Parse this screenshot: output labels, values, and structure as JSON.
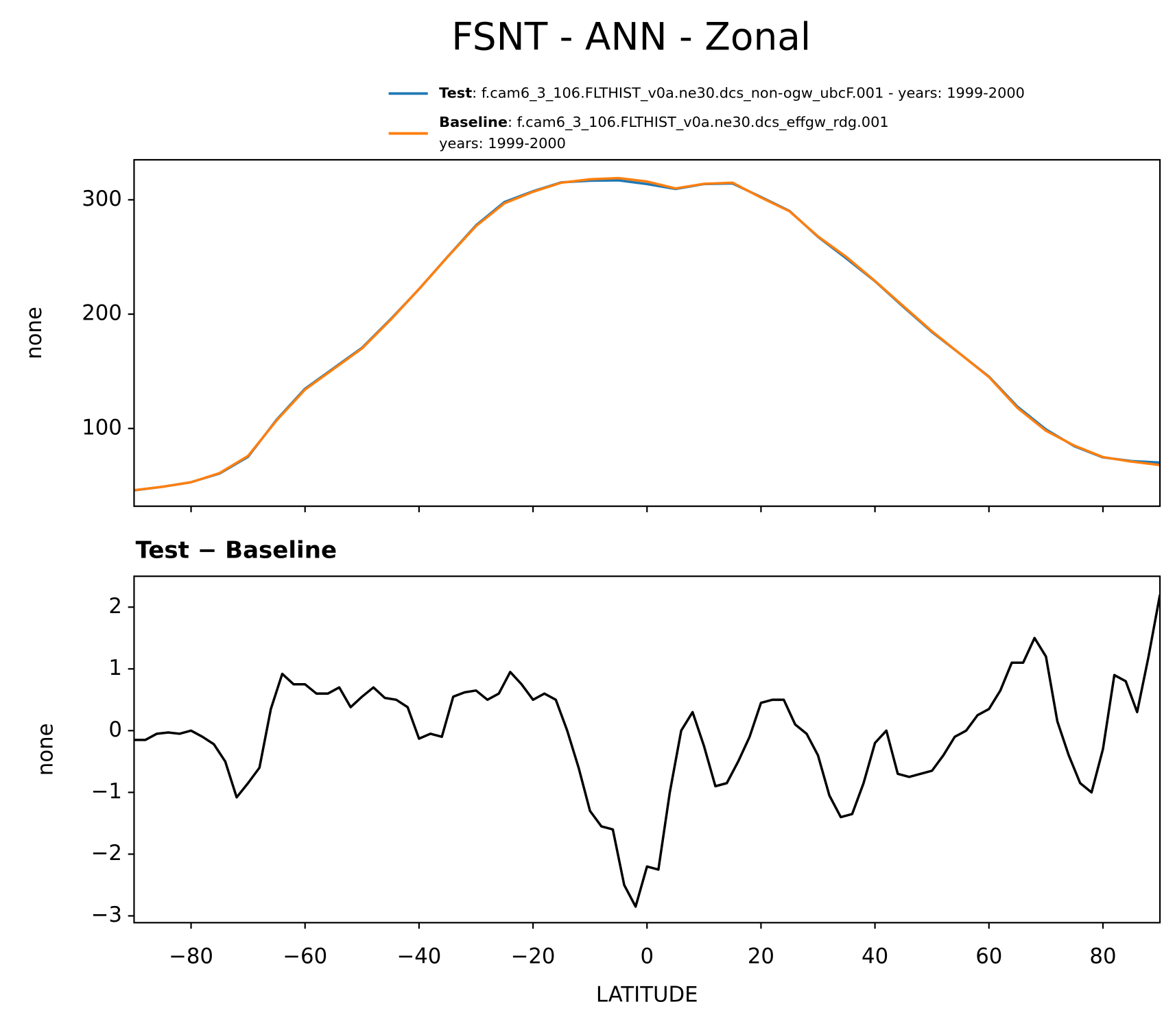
{
  "chart_data": [
    {
      "type": "line",
      "title": "FSNT - ANN - Zonal",
      "ylabel": "none",
      "x": [
        -90,
        -85,
        -80,
        -75,
        -70,
        -65,
        -60,
        -55,
        -50,
        -45,
        -40,
        -35,
        -30,
        -25,
        -20,
        -15,
        -10,
        -5,
        0,
        5,
        10,
        15,
        20,
        25,
        30,
        35,
        40,
        45,
        50,
        55,
        60,
        65,
        70,
        75,
        80,
        85,
        90
      ],
      "series": [
        {
          "name": "Test",
          "description": ": f.cam6_3_106.FLTHIST_v0a.ne30.dcs_non-ogw_ubcF.001 - years: 1999-2000",
          "color": "#1f77b4",
          "values": [
            45.9,
            49,
            53,
            60.6,
            75.2,
            107.6,
            134.8,
            152.7,
            170.6,
            195.5,
            221.9,
            250.2,
            277.7,
            298.1,
            307.5,
            315.3,
            316.7,
            317,
            313.8,
            309.5,
            313.8,
            314.3,
            302.5,
            290.3,
            267.6,
            248.6,
            228.8,
            206.3,
            184.4,
            165,
            145.4,
            119.1,
            99.2,
            84.4,
            74.7,
            71.5,
            70.2
          ]
        },
        {
          "name": "Baseline",
          "description": ": f.cam6_3_106.FLTHIST_v0a.ne30.dcs_effgw_rdg.001",
          "description_line2": "years: 1999-2000",
          "color": "#ff7f0e",
          "values": [
            46,
            49,
            53,
            61,
            76,
            107,
            134,
            152,
            170,
            195,
            222,
            250,
            277,
            297,
            307,
            315,
            318,
            319,
            316,
            310,
            314,
            315,
            302,
            290,
            268,
            250,
            229,
            207,
            185,
            165,
            145,
            118,
            98,
            85,
            75,
            71,
            68
          ]
        }
      ],
      "xlim": [
        -90,
        90
      ],
      "ylim": [
        32,
        335
      ],
      "xticks": [
        -80,
        -60,
        -40,
        -20,
        0,
        20,
        40,
        60,
        80
      ],
      "yticks": [
        100,
        200,
        300
      ]
    },
    {
      "type": "line",
      "title": "Test − Baseline",
      "ylabel": "none",
      "xlabel": "LATITUDE",
      "x": [
        -90,
        -88,
        -86,
        -84,
        -82,
        -80,
        -78,
        -76,
        -74,
        -72,
        -70,
        -68,
        -66,
        -64,
        -62,
        -60,
        -58,
        -56,
        -54,
        -52,
        -50,
        -48,
        -46,
        -44,
        -42,
        -40,
        -38,
        -36,
        -34,
        -32,
        -30,
        -28,
        -26,
        -24,
        -22,
        -20,
        -18,
        -16,
        -14,
        -12,
        -10,
        -8,
        -6,
        -4,
        -2,
        0,
        2,
        4,
        6,
        8,
        10,
        12,
        14,
        16,
        18,
        20,
        22,
        24,
        26,
        28,
        30,
        32,
        34,
        36,
        38,
        40,
        42,
        44,
        46,
        48,
        50,
        52,
        54,
        56,
        58,
        60,
        62,
        64,
        66,
        68,
        70,
        72,
        74,
        76,
        78,
        80,
        82,
        84,
        86,
        88,
        90
      ],
      "series": [
        {
          "name": "Test − Baseline",
          "color": "#000000",
          "values": [
            -0.15,
            -0.15,
            -0.05,
            -0.03,
            -0.05,
            0.0,
            -0.1,
            -0.22,
            -0.5,
            -1.08,
            -0.85,
            -0.6,
            0.35,
            0.92,
            0.75,
            0.75,
            0.6,
            0.6,
            0.7,
            0.38,
            0.55,
            0.7,
            0.53,
            0.5,
            0.38,
            -0.13,
            -0.05,
            -0.1,
            0.55,
            0.62,
            0.65,
            0.5,
            0.6,
            0.95,
            0.75,
            0.5,
            0.6,
            0.5,
            0.0,
            -0.6,
            -1.3,
            -1.55,
            -1.6,
            -2.5,
            -2.85,
            -2.2,
            -2.25,
            -1.0,
            0.0,
            0.3,
            -0.25,
            -0.9,
            -0.85,
            -0.5,
            -0.1,
            0.45,
            0.5,
            0.5,
            0.1,
            -0.05,
            -0.4,
            -1.05,
            -1.4,
            -1.35,
            -0.85,
            -0.2,
            0.0,
            -0.7,
            -0.75,
            -0.7,
            -0.65,
            -0.4,
            -0.1,
            0.0,
            0.25,
            0.35,
            0.65,
            1.1,
            1.1,
            1.5,
            1.2,
            0.15,
            -0.4,
            -0.85,
            -1.0,
            -0.3,
            0.9,
            0.8,
            0.3,
            1.2,
            2.2
          ]
        }
      ],
      "xlim": [
        -90,
        90
      ],
      "ylim": [
        -3.11,
        2.5
      ],
      "xticks": [
        {
          "value": -80,
          "label": "−80"
        },
        {
          "value": -60,
          "label": "−60"
        },
        {
          "value": -40,
          "label": "−40"
        },
        {
          "value": -20,
          "label": "−20"
        },
        0,
        20,
        40,
        60,
        80
      ],
      "yticks": [
        {
          "value": -3,
          "label": "−3"
        },
        {
          "value": -2,
          "label": "−2"
        },
        {
          "value": -1,
          "label": "−1"
        },
        0,
        1,
        2
      ]
    }
  ]
}
